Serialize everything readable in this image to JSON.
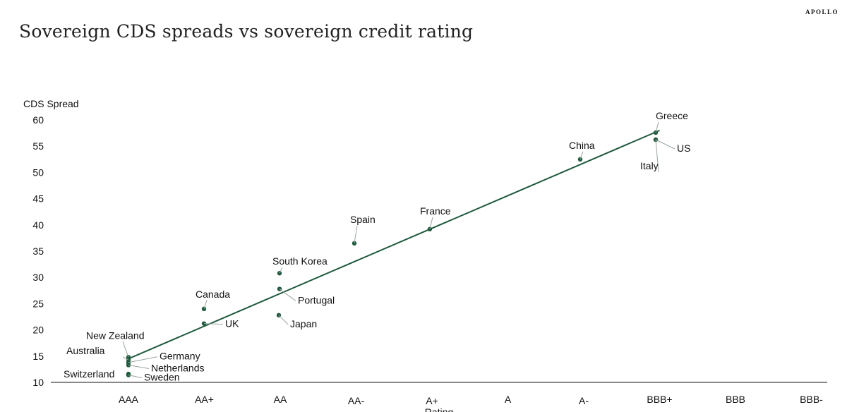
{
  "brand": "APOLLO",
  "title": "Sovereign CDS spreads vs sovereign credit rating",
  "colors": {
    "accent": "#1f5a3e",
    "leader": "#9aa5a0"
  },
  "chart_data": {
    "type": "scatter",
    "title": "Sovereign CDS spreads vs sovereign credit rating",
    "ylabel": "CDS Spread",
    "xlabel": "Rating",
    "ylim": [
      10,
      60
    ],
    "yticks": [
      10,
      15,
      20,
      25,
      30,
      35,
      40,
      45,
      50,
      55,
      60
    ],
    "categories": [
      "AAA",
      "AA+",
      "AA",
      "AA-",
      "A+",
      "A",
      "A-",
      "BBB+",
      "BBB",
      "BBB-"
    ],
    "grid": false,
    "points": [
      {
        "label": "New Zealand",
        "x": "AAA",
        "y": 14.8
      },
      {
        "label": "Australia",
        "x": "AAA",
        "y": 14.3
      },
      {
        "label": "Germany",
        "x": "AAA",
        "y": 13.8
      },
      {
        "label": "Netherlands",
        "x": "AAA",
        "y": 13.3
      },
      {
        "label": "Switzerland",
        "x": "AAA",
        "y": 11.6
      },
      {
        "label": "Sweden",
        "x": "AAA",
        "y": 11.4
      },
      {
        "label": "Canada",
        "x": "AA+",
        "y": 24.0
      },
      {
        "label": "UK",
        "x": "AA+",
        "y": 21.2
      },
      {
        "label": "South Korea",
        "x": "AA",
        "y": 30.8
      },
      {
        "label": "Portugal",
        "x": "AA",
        "y": 27.8
      },
      {
        "label": "Japan",
        "x": "AA",
        "y": 22.8
      },
      {
        "label": "Spain",
        "x": "AA-",
        "y": 36.5
      },
      {
        "label": "France",
        "x": "A+",
        "y": 39.2
      },
      {
        "label": "China",
        "x": "A-",
        "y": 52.5
      },
      {
        "label": "Greece",
        "x": "BBB+",
        "y": 57.5
      },
      {
        "label": "US",
        "x": "BBB+",
        "y": 56.3
      },
      {
        "label": "Italy",
        "x": "BBB+",
        "y": 56.0
      }
    ],
    "trendline": {
      "x": [
        "AAA",
        "BBB+"
      ],
      "y": [
        14.5,
        58.0
      ]
    }
  }
}
